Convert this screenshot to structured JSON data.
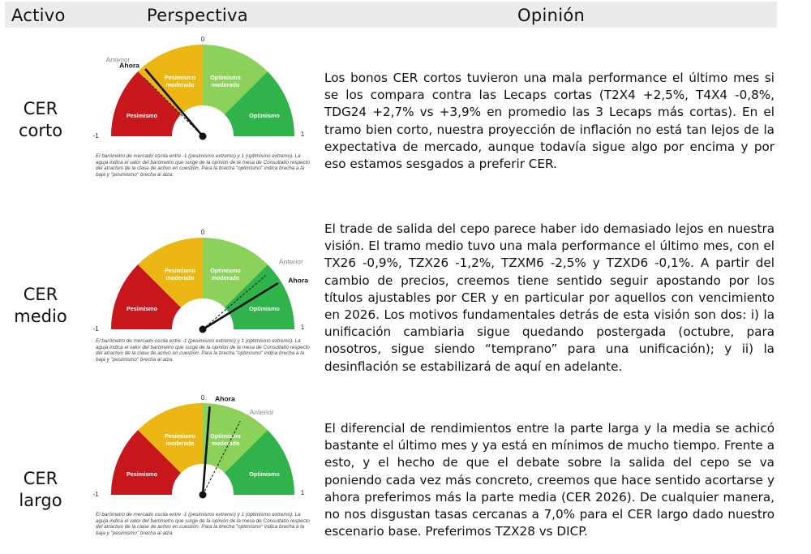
{
  "header": {
    "activo": "Activo",
    "perspectiva": "Perspectiva",
    "opinion": "Opinión"
  },
  "colors": {
    "pesimismo": "#c8161d",
    "pesimismo_moderado": "#ecb614",
    "optimismo_moderado": "#8cd15a",
    "optimismo": "#2fb34a",
    "header_bg": "#ebebeb",
    "needle": "#111111"
  },
  "gauge_labels": {
    "zero": "0",
    "min": "-1",
    "max": "1",
    "pesimismo": "Pesimismo",
    "pesimismo_moderado_1": "Pesimismo",
    "pesimismo_moderado_2": "moderado",
    "optimismo_moderado_1": "Optimismo",
    "optimismo_moderado_2": "moderado",
    "optimismo": "Optimismo",
    "anterior": "Anterior",
    "ahora": "Ahora"
  },
  "rows": [
    {
      "asset_line1": "CER",
      "asset_line2": "corto",
      "ahora_value": -0.45,
      "anterior_value": -0.5,
      "caption": "El barómetro de mercado oscila entre -1 (pesimismo extremo) y 1 (optimismo extremo). La aguja indica el valor del barómetro que surge de la opinión de la mesa de Consultatio respecto del atractivo de la clase de activo en cuestión. Para la brecha \"optimismo\" indica brecha a la baja y \"pesimismo\" brecha al alza.",
      "opinion": "Los bonos CER cortos tuvieron una mala performance el último mes si se los compara contra las Lecaps cortas (T2X4 +2,5%, T4X4 -0,8%, TDG24 +2,7% vs +3,9% en promedio las 3 Lecaps más cortas). En el tramo bien corto, nuestra proyección de inflación no está tan lejos de la expectativa de mercado, aunque todavía sigue algo por encima y por eso estamos sesgados a preferir CER."
    },
    {
      "asset_line1": "CER",
      "asset_line2": "medio",
      "ahora_value": 0.65,
      "anterior_value": 0.55,
      "caption": "El barómetro de mercado oscila entre -1 (pesimismo extremo) y 1 (optimismo extremo). La aguja indica el valor del barómetro que surge de la opinión de la mesa de Consultatio respecto del atractivo de la clase de activo en cuestión. Para la brecha \"optimismo\" indica brecha a la baja y \"pesimismo\" brecha al alza.",
      "opinion": "El trade de salida del cepo parece haber ido demasiado lejos en nuestra visión. El tramo medio tuvo una mala performance el último mes, con el TX26 -0,9%, TZX26 -1,2%, TZXM6 -2,5% y TZXD6 -0,1%. A partir del cambio de precios, creemos tiene sentido seguir apostando por los títulos ajustables por CER y en particular por aquellos con vencimiento en 2026. Los motivos fundamentales detrás de esta visión son dos: i) la unificación cambiaria sigue quedando postergada (octubre, para nosotros, sigue siendo “temprano” para una unificación); y ii) la desinflación se estabilizará de aquí en adelante."
    },
    {
      "asset_line1": "CER",
      "asset_line2": "largo",
      "ahora_value": 0.05,
      "anterior_value": 0.3,
      "caption": "El barómetro de mercado oscila entre -1 (pesimismo extremo) y 1 (optimismo extremo). La aguja indica el valor del barómetro que surge de la opinión de la mesa de Consultatio respecto del atractivo de la clase de activo en cuestión. Para la brecha \"optimismo\" indica brecha a la baja y \"pesimismo\" brecha al alza.",
      "opinion": "El diferencial de rendimientos entre la parte larga y la media se achicó bastante el último mes y ya está en mínimos de mucho tiempo. Frente a esto, y el hecho de que el debate sobre la salida del cepo se va poniendo cada vez más concreto, creemos que hace sentido acortarse y ahora preferimos más la parte media (CER 2026). De cualquier manera, no nos disgustan tasas cercanas a 7,0% para el CER largo dado nuestro escenario base. Preferimos TZX28 vs DICP."
    }
  ]
}
